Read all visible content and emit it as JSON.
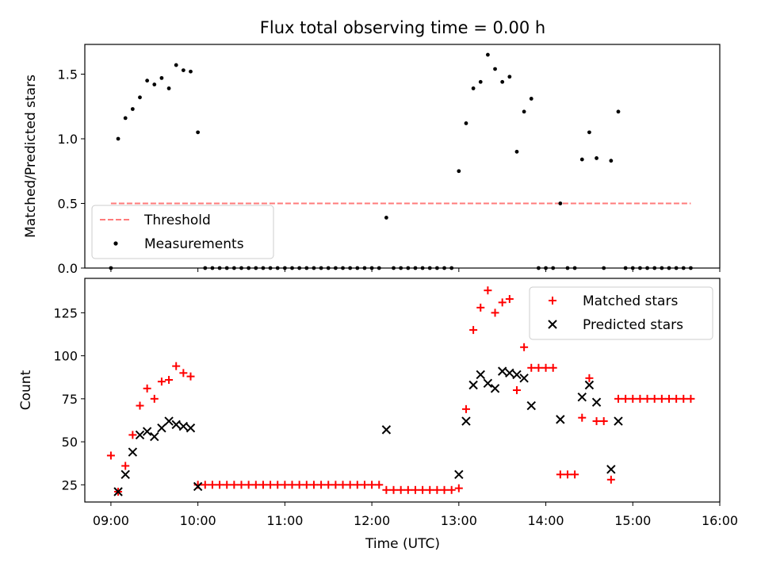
{
  "chart_data": [
    {
      "type": "scatter",
      "title": "Flux total observing time = 0.00 h",
      "xlabel": "",
      "ylabel": "Matched/Predicted stars",
      "xlim": [
        "08:42",
        "16:00"
      ],
      "ylim": [
        0,
        1.73
      ],
      "yticks": [
        0.0,
        0.5,
        1.0,
        1.5
      ],
      "ytick_labels": [
        "0.0",
        "0.5",
        "1.0",
        "1.5"
      ],
      "legend_position": "lower-left",
      "series": [
        {
          "name": "Threshold",
          "style": "dashed-line",
          "color": "#ff7b7b",
          "x": [
            "09:00",
            "15:40"
          ],
          "y": [
            0.5,
            0.5
          ]
        },
        {
          "name": "Measurements",
          "style": "dot",
          "color": "#000000",
          "x": [
            "09:00",
            "09:05",
            "09:10",
            "09:15",
            "09:20",
            "09:25",
            "09:30",
            "09:35",
            "09:40",
            "09:45",
            "09:50",
            "09:55",
            "10:00",
            "10:05",
            "10:10",
            "10:15",
            "10:20",
            "10:25",
            "10:30",
            "10:35",
            "10:40",
            "10:45",
            "10:50",
            "10:55",
            "11:00",
            "11:05",
            "11:10",
            "11:15",
            "11:20",
            "11:25",
            "11:30",
            "11:35",
            "11:40",
            "11:45",
            "11:50",
            "11:55",
            "12:00",
            "12:05",
            "12:10",
            "12:15",
            "12:20",
            "12:25",
            "12:30",
            "12:35",
            "12:40",
            "12:45",
            "12:50",
            "12:55",
            "13:00",
            "13:05",
            "13:10",
            "13:15",
            "13:20",
            "13:25",
            "13:30",
            "13:35",
            "13:40",
            "13:45",
            "13:50",
            "13:55",
            "14:00",
            "14:05",
            "14:10",
            "14:15",
            "14:20",
            "14:25",
            "14:30",
            "14:35",
            "14:40",
            "14:45",
            "14:50",
            "14:55",
            "15:00",
            "15:05",
            "15:10",
            "15:15",
            "15:20",
            "15:25",
            "15:30",
            "15:35",
            "15:40"
          ],
          "y": [
            0.0,
            1.0,
            1.16,
            1.23,
            1.32,
            1.45,
            1.42,
            1.47,
            1.39,
            1.57,
            1.53,
            1.52,
            1.05,
            0,
            0,
            0,
            0,
            0,
            0,
            0,
            0,
            0,
            0,
            0,
            0,
            0,
            0,
            0,
            0,
            0,
            0,
            0,
            0,
            0,
            0,
            0,
            0,
            0,
            0.39,
            0,
            0,
            0,
            0,
            0,
            0,
            0,
            0,
            0,
            0.75,
            1.12,
            1.39,
            1.44,
            1.65,
            1.54,
            1.44,
            1.48,
            0.9,
            1.21,
            1.31,
            0,
            0,
            0,
            0.5,
            0,
            0,
            0.84,
            1.05,
            0.85,
            0,
            0.83,
            1.21,
            0,
            0,
            0,
            0,
            0,
            0,
            0,
            0,
            0,
            0
          ]
        }
      ]
    },
    {
      "type": "scatter",
      "title": "",
      "xlabel": "Time (UTC)",
      "ylabel": "Count",
      "xlim": [
        "08:42",
        "16:00"
      ],
      "ylim": [
        15,
        145
      ],
      "xticks": [
        "09:00",
        "10:00",
        "11:00",
        "12:00",
        "13:00",
        "14:00",
        "15:00",
        "16:00"
      ],
      "yticks": [
        25,
        50,
        75,
        100,
        125
      ],
      "ytick_labels": [
        "25",
        "50",
        "75",
        "100",
        "125"
      ],
      "legend_position": "upper-right",
      "series": [
        {
          "name": "Matched stars",
          "marker": "plus",
          "color": "#ff0000",
          "x": [
            "09:00",
            "09:05",
            "09:10",
            "09:15",
            "09:20",
            "09:25",
            "09:30",
            "09:35",
            "09:40",
            "09:45",
            "09:50",
            "09:55",
            "10:00",
            "10:05",
            "10:10",
            "10:15",
            "10:20",
            "10:25",
            "10:30",
            "10:35",
            "10:40",
            "10:45",
            "10:50",
            "10:55",
            "11:00",
            "11:05",
            "11:10",
            "11:15",
            "11:20",
            "11:25",
            "11:30",
            "11:35",
            "11:40",
            "11:45",
            "11:50",
            "11:55",
            "12:00",
            "12:05",
            "12:10",
            "12:15",
            "12:20",
            "12:25",
            "12:30",
            "12:35",
            "12:40",
            "12:45",
            "12:50",
            "12:55",
            "13:00",
            "13:05",
            "13:10",
            "13:15",
            "13:20",
            "13:25",
            "13:30",
            "13:35",
            "13:40",
            "13:45",
            "13:50",
            "13:55",
            "14:00",
            "14:05",
            "14:10",
            "14:15",
            "14:20",
            "14:25",
            "14:30",
            "14:35",
            "14:40",
            "14:45",
            "14:50",
            "14:55",
            "15:00",
            "15:05",
            "15:10",
            "15:15",
            "15:20",
            "15:25",
            "15:30",
            "15:35",
            "15:40"
          ],
          "y": [
            42,
            21,
            36,
            54,
            71,
            81,
            75,
            85,
            86,
            94,
            90,
            88,
            25,
            25,
            25,
            25,
            25,
            25,
            25,
            25,
            25,
            25,
            25,
            25,
            25,
            25,
            25,
            25,
            25,
            25,
            25,
            25,
            25,
            25,
            25,
            25,
            25,
            25,
            22,
            22,
            22,
            22,
            22,
            22,
            22,
            22,
            22,
            22,
            23,
            69,
            115,
            128,
            138,
            125,
            131,
            133,
            80,
            105,
            93,
            93,
            93,
            93,
            31,
            31,
            31,
            64,
            87,
            62,
            62,
            28,
            75,
            75,
            75,
            75,
            75,
            75,
            75,
            75,
            75,
            75,
            75
          ]
        },
        {
          "name": "Predicted stars",
          "marker": "x",
          "color": "#000000",
          "x": [
            "09:05",
            "09:10",
            "09:15",
            "09:20",
            "09:25",
            "09:30",
            "09:35",
            "09:40",
            "09:45",
            "09:50",
            "09:55",
            "10:00",
            "12:10",
            "13:00",
            "13:05",
            "13:10",
            "13:15",
            "13:20",
            "13:25",
            "13:30",
            "13:35",
            "13:40",
            "13:45",
            "13:50",
            "14:10",
            "14:25",
            "14:30",
            "14:35",
            "14:45",
            "14:50"
          ],
          "y": [
            21,
            31,
            44,
            54,
            56,
            53,
            58,
            62,
            60,
            59,
            58,
            24,
            57,
            31,
            62,
            83,
            89,
            84,
            81,
            91,
            90,
            89,
            87,
            71,
            63,
            76,
            83,
            73,
            34,
            62
          ]
        }
      ]
    }
  ]
}
